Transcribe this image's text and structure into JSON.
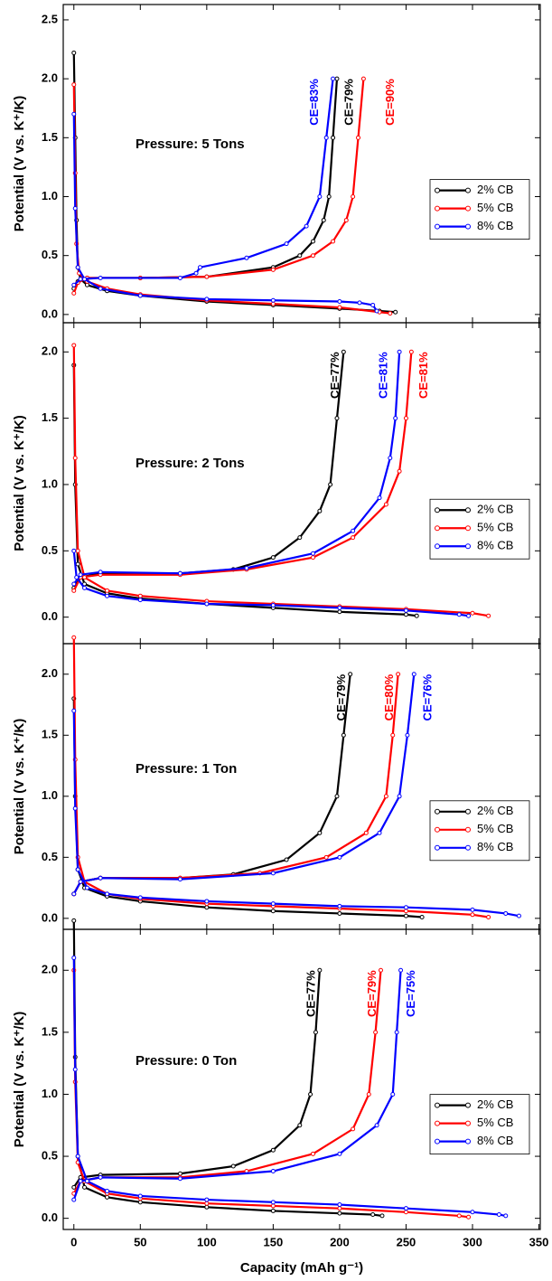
{
  "chart_data": [
    {
      "type": "line",
      "annotation": "Pressure: 5 Tons",
      "y_label": "Potential (V vs. K⁺/K)",
      "xlim": [
        -8,
        351
      ],
      "ylim": [
        -0.07,
        2.63
      ],
      "yticks": [
        {
          "value": 0,
          "label": "0.0"
        },
        {
          "value": 0.5,
          "label": "0.5"
        },
        {
          "value": 1,
          "label": "1.0"
        },
        {
          "value": 1.5,
          "label": "1.5"
        },
        {
          "value": 2,
          "label": "2.0"
        },
        {
          "value": 2.5,
          "label": "2.5"
        }
      ],
      "legend": "right",
      "series": [
        {
          "name": "2% CB",
          "color": "#000000",
          "ce_label": "CE=79%",
          "x": [
            0,
            1,
            2,
            3,
            5,
            10,
            25,
            50,
            100,
            150,
            200,
            230,
            242,
            null,
            0,
            3,
            10,
            50,
            100,
            150,
            170,
            180,
            188,
            192,
            195,
            198
          ],
          "values": [
            2.22,
            1.5,
            0.8,
            0.4,
            0.3,
            0.25,
            0.2,
            0.16,
            0.11,
            0.08,
            0.05,
            0.03,
            0.02,
            null,
            0.22,
            0.28,
            0.31,
            0.31,
            0.32,
            0.4,
            0.5,
            0.62,
            0.8,
            1.0,
            1.5,
            2.0
          ]
        },
        {
          "name": "5% CB",
          "color": "#ff0000",
          "ce_label": "CE=90%",
          "x": [
            0,
            1,
            2,
            4,
            10,
            25,
            50,
            100,
            150,
            200,
            230,
            238,
            null,
            0,
            3,
            10,
            50,
            100,
            150,
            180,
            195,
            205,
            210,
            214,
            218
          ],
          "values": [
            1.95,
            1.2,
            0.6,
            0.35,
            0.28,
            0.22,
            0.17,
            0.12,
            0.09,
            0.06,
            0.02,
            0.01,
            null,
            0.18,
            0.27,
            0.31,
            0.31,
            0.32,
            0.38,
            0.5,
            0.62,
            0.8,
            1.0,
            1.5,
            2.0
          ]
        },
        {
          "name": "8% CB",
          "color": "#0000ff",
          "ce_label": "CE=83%",
          "x": [
            0,
            1,
            3,
            8,
            20,
            50,
            100,
            150,
            200,
            215,
            225,
            228,
            null,
            0,
            5,
            20,
            80,
            92,
            95,
            130,
            160,
            175,
            185,
            190,
            195
          ],
          "values": [
            1.7,
            0.9,
            0.4,
            0.3,
            0.22,
            0.16,
            0.13,
            0.12,
            0.11,
            0.1,
            0.08,
            0.03,
            null,
            0.25,
            0.3,
            0.31,
            0.31,
            0.35,
            0.4,
            0.48,
            0.6,
            0.75,
            1.0,
            1.5,
            2.0
          ]
        }
      ]
    },
    {
      "type": "line",
      "annotation": "Pressure: 2 Tons",
      "y_label": "Potential (V vs. K⁺/K)",
      "xlim": [
        -8,
        351
      ],
      "ylim": [
        -0.2,
        2.22
      ],
      "yticks": [
        {
          "value": 0,
          "label": "0.0"
        },
        {
          "value": 0.5,
          "label": "0.5"
        },
        {
          "value": 1,
          "label": "1.0"
        },
        {
          "value": 1.5,
          "label": "1.5"
        },
        {
          "value": 2,
          "label": "2.0"
        }
      ],
      "legend": "right",
      "series": [
        {
          "name": "2% CB",
          "color": "#000000",
          "ce_label": "CE=77%",
          "x": [
            0,
            1,
            3,
            8,
            25,
            50,
            100,
            150,
            200,
            250,
            258,
            null,
            0,
            5,
            20,
            80,
            120,
            150,
            170,
            185,
            193,
            198,
            203
          ],
          "values": [
            1.9,
            1.0,
            0.4,
            0.25,
            0.18,
            0.14,
            0.1,
            0.07,
            0.04,
            0.02,
            0.01,
            null,
            0.22,
            0.3,
            0.33,
            0.33,
            0.36,
            0.45,
            0.6,
            0.8,
            1.0,
            1.5,
            2.0
          ]
        },
        {
          "name": "5% CB",
          "color": "#ff0000",
          "ce_label": "CE=81%",
          "x": [
            0,
            1,
            3,
            8,
            25,
            50,
            100,
            150,
            200,
            250,
            300,
            312,
            null,
            0,
            5,
            20,
            80,
            130,
            180,
            210,
            235,
            245,
            250,
            254
          ],
          "values": [
            2.05,
            1.2,
            0.5,
            0.3,
            0.2,
            0.16,
            0.12,
            0.1,
            0.08,
            0.06,
            0.03,
            0.01,
            null,
            0.2,
            0.3,
            0.32,
            0.32,
            0.36,
            0.45,
            0.6,
            0.85,
            1.1,
            1.5,
            2.0
          ]
        },
        {
          "name": "8% CB",
          "color": "#0000ff",
          "ce_label": "CE=81%",
          "x": [
            0,
            2,
            8,
            25,
            50,
            100,
            150,
            200,
            250,
            290,
            297,
            null,
            0,
            5,
            20,
            80,
            130,
            180,
            210,
            230,
            238,
            242,
            245
          ],
          "values": [
            0.5,
            0.3,
            0.22,
            0.16,
            0.13,
            0.1,
            0.09,
            0.07,
            0.05,
            0.02,
            0.01,
            null,
            0.25,
            0.32,
            0.34,
            0.33,
            0.37,
            0.48,
            0.65,
            0.9,
            1.2,
            1.5,
            2.0
          ]
        }
      ]
    },
    {
      "type": "line",
      "annotation": "Pressure: 1 Ton",
      "y_label": "Potential (V vs. K⁺/K)",
      "xlim": [
        -8,
        351
      ],
      "ylim": [
        -0.09,
        2.25
      ],
      "yticks": [
        {
          "value": 0,
          "label": "0.0"
        },
        {
          "value": 0.5,
          "label": "0.5"
        },
        {
          "value": 1,
          "label": "1.0"
        },
        {
          "value": 1.5,
          "label": "1.5"
        },
        {
          "value": 2,
          "label": "2.0"
        }
      ],
      "legend": "right",
      "series": [
        {
          "name": "2% CB",
          "color": "#000000",
          "ce_label": "CE=79%",
          "x": [
            0,
            1,
            3,
            8,
            25,
            50,
            100,
            150,
            200,
            250,
            262,
            null,
            0,
            5,
            20,
            80,
            120,
            160,
            185,
            198,
            203,
            208
          ],
          "values": [
            1.8,
            1.0,
            0.4,
            0.25,
            0.18,
            0.14,
            0.09,
            0.06,
            0.04,
            0.02,
            0.01,
            null,
            0.2,
            0.3,
            0.33,
            0.33,
            0.36,
            0.48,
            0.7,
            1.0,
            1.5,
            2.0
          ]
        },
        {
          "name": "5% CB",
          "color": "#ff0000",
          "ce_label": "CE=80%",
          "x": [
            0,
            1,
            3,
            8,
            25,
            50,
            100,
            150,
            200,
            250,
            300,
            312,
            null,
            0,
            5,
            20,
            80,
            140,
            190,
            220,
            235,
            240,
            244
          ],
          "values": [
            2.3,
            1.3,
            0.5,
            0.3,
            0.2,
            0.16,
            0.12,
            0.1,
            0.08,
            0.06,
            0.03,
            0.01,
            null,
            0.2,
            0.3,
            0.33,
            0.33,
            0.37,
            0.5,
            0.7,
            1.0,
            1.5,
            2.0
          ]
        },
        {
          "name": "8% CB",
          "color": "#0000ff",
          "ce_label": "CE=76%",
          "x": [
            0,
            1,
            3,
            10,
            25,
            50,
            100,
            150,
            200,
            250,
            300,
            325,
            335,
            null,
            0,
            5,
            20,
            80,
            150,
            200,
            230,
            245,
            251,
            256
          ],
          "values": [
            1.7,
            0.9,
            0.4,
            0.25,
            0.2,
            0.17,
            0.14,
            0.12,
            0.1,
            0.09,
            0.07,
            0.04,
            0.02,
            null,
            0.2,
            0.3,
            0.33,
            0.32,
            0.37,
            0.5,
            0.7,
            1.0,
            1.5,
            2.0
          ]
        }
      ]
    },
    {
      "type": "line",
      "annotation": "Pressure: 0 Ton",
      "y_label": "Potential (V vs. K⁺/K)",
      "x_label": "Capacity (mAh g⁻¹)",
      "xlim": [
        -8,
        351
      ],
      "ylim": [
        -0.09,
        2.33
      ],
      "xticks": [
        0,
        50,
        100,
        150,
        200,
        250,
        300,
        350
      ],
      "yticks": [
        {
          "value": 0,
          "label": "0.0"
        },
        {
          "value": 0.5,
          "label": "0.5"
        },
        {
          "value": 1,
          "label": "1.0"
        },
        {
          "value": 1.5,
          "label": "1.5"
        },
        {
          "value": 2,
          "label": "2.0"
        }
      ],
      "legend": "right",
      "series": [
        {
          "name": "2% CB",
          "color": "#000000",
          "ce_label": "CE=77%",
          "x": [
            0,
            1,
            3,
            8,
            25,
            50,
            100,
            150,
            200,
            225,
            232,
            null,
            0,
            5,
            20,
            80,
            120,
            150,
            170,
            178,
            182,
            185
          ],
          "values": [
            2.4,
            1.3,
            0.5,
            0.25,
            0.17,
            0.13,
            0.09,
            0.06,
            0.04,
            0.03,
            0.02,
            null,
            0.25,
            0.33,
            0.35,
            0.36,
            0.42,
            0.55,
            0.75,
            1.0,
            1.5,
            2.0
          ]
        },
        {
          "name": "5% CB",
          "color": "#ff0000",
          "ce_label": "CE=79%",
          "x": [
            0,
            1,
            3,
            8,
            25,
            50,
            100,
            150,
            200,
            250,
            290,
            297,
            null,
            0,
            5,
            20,
            80,
            130,
            180,
            210,
            222,
            227,
            231
          ],
          "values": [
            2.0,
            1.1,
            0.45,
            0.3,
            0.2,
            0.16,
            0.12,
            0.1,
            0.08,
            0.05,
            0.02,
            0.01,
            null,
            0.2,
            0.3,
            0.33,
            0.33,
            0.38,
            0.52,
            0.72,
            1.0,
            1.5,
            2.0
          ]
        },
        {
          "name": "8% CB",
          "color": "#0000ff",
          "ce_label": "CE=75%",
          "x": [
            0,
            1,
            3,
            10,
            25,
            50,
            100,
            150,
            200,
            250,
            300,
            320,
            325,
            null,
            0,
            5,
            20,
            80,
            150,
            200,
            228,
            240,
            243,
            246
          ],
          "values": [
            2.1,
            1.2,
            0.5,
            0.3,
            0.22,
            0.18,
            0.15,
            0.13,
            0.11,
            0.08,
            0.05,
            0.03,
            0.02,
            null,
            0.15,
            0.3,
            0.33,
            0.32,
            0.38,
            0.52,
            0.75,
            1.0,
            1.5,
            2.0
          ]
        }
      ]
    }
  ]
}
